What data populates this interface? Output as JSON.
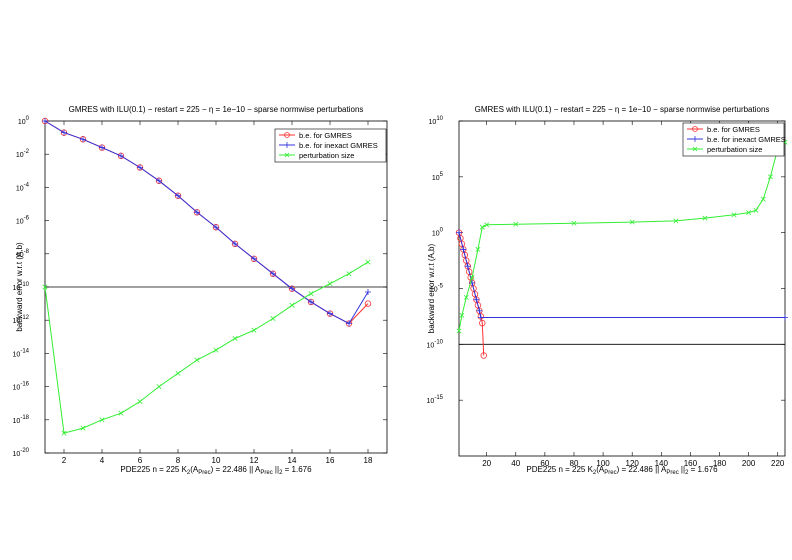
{
  "chart_data": [
    {
      "type": "line",
      "title": "GMRES with ILU(0.1)  − restart = 225 − η = 1e−10 − sparse normwise perturbations",
      "ylabel": "backward error w.r.t (A,b)",
      "xlabel": {
        "problem": "PDE225",
        "size": "n = 225",
        "cond_prefix": "K",
        "cond_sub": "2",
        "cond_mid": "(A",
        "cond_sub2": "Prec",
        "cond_suffix": ") = 22.486",
        "norm_prefix": "|| A",
        "norm_sub": "Prec",
        "norm_suffix": " ||",
        "norm_sub2": "2",
        "norm_value": " = 1.676"
      },
      "xlim": [
        1,
        19
      ],
      "ylim_exp": [
        -20,
        0
      ],
      "xticks": [
        2,
        4,
        6,
        8,
        10,
        12,
        14,
        16,
        18
      ],
      "yticks_exp": [
        0,
        -2,
        -4,
        -6,
        -8,
        -10,
        -12,
        -14,
        -16,
        -18,
        -20
      ],
      "ytick_base": "10",
      "scale": "log",
      "hline_exp": -10,
      "legend": "top-right",
      "series": [
        {
          "name": "b.e. for GMRES",
          "color": "#ff3333",
          "marker": "circle",
          "x": [
            1,
            2,
            3,
            4,
            5,
            6,
            7,
            8,
            9,
            10,
            11,
            12,
            13,
            14,
            15,
            16,
            17,
            18
          ],
          "y_exp": [
            0,
            -0.7,
            -1.1,
            -1.6,
            -2.1,
            -2.8,
            -3.6,
            -4.5,
            -5.5,
            -6.4,
            -7.4,
            -8.3,
            -9.2,
            -10.1,
            -10.9,
            -11.6,
            -12.2,
            -11.0
          ]
        },
        {
          "name": "b.e. for inexact GMRES",
          "color": "#3333dd",
          "marker": "plus",
          "x": [
            1,
            2,
            3,
            4,
            5,
            6,
            7,
            8,
            9,
            10,
            11,
            12,
            13,
            14,
            15,
            16,
            17,
            18
          ],
          "y_exp": [
            0,
            -0.7,
            -1.1,
            -1.6,
            -2.1,
            -2.8,
            -3.6,
            -4.5,
            -5.5,
            -6.4,
            -7.4,
            -8.3,
            -9.2,
            -10.1,
            -10.9,
            -11.6,
            -12.2,
            -10.3
          ]
        },
        {
          "name": "perturbation size",
          "color": "#33ee33",
          "marker": "x",
          "x": [
            1,
            2,
            3,
            4,
            5,
            6,
            7,
            8,
            9,
            10,
            11,
            12,
            13,
            14,
            15,
            16,
            17,
            18
          ],
          "y_exp": [
            -10.0,
            -18.8,
            -18.5,
            -18.0,
            -17.6,
            -16.9,
            -16.0,
            -15.2,
            -14.4,
            -13.8,
            -13.1,
            -12.6,
            -11.9,
            -11.1,
            -10.4,
            -9.8,
            -9.2,
            -8.5
          ]
        }
      ]
    },
    {
      "type": "line",
      "title": "GMRES with ILU(0.1)  − restart = 225 − η = 1e−10 − sparse normwise perturbations",
      "ylabel": "backward error w.r.t (A,b)",
      "xlabel": {
        "problem": "PDE225",
        "size": "n = 225",
        "cond_prefix": "K",
        "cond_sub": "2",
        "cond_mid": "(A",
        "cond_sub2": "Prec",
        "cond_suffix": ") = 22.486",
        "norm_prefix": "|| A",
        "norm_sub": "Prec",
        "norm_suffix": " ||",
        "norm_sub2": "2",
        "norm_value": " = 1.676"
      },
      "xlim": [
        1,
        225
      ],
      "ylim_exp": [
        -20,
        10
      ],
      "xticks": [
        20,
        40,
        60,
        80,
        100,
        120,
        140,
        160,
        180,
        200,
        220
      ],
      "yticks_exp": [
        10,
        5,
        0,
        -5,
        -10,
        -15
      ],
      "ytick_base": "10",
      "scale": "log",
      "hline_exp": -10,
      "legend": "top-left",
      "series": [
        {
          "name": "b.e. for GMRES",
          "color": "#ff3333",
          "marker": "circle",
          "x": [
            1,
            2,
            3,
            4,
            5,
            6,
            7,
            8,
            9,
            10,
            11,
            12,
            13,
            14,
            15,
            16,
            17,
            18
          ],
          "y_exp": [
            0,
            -0.5,
            -1.0,
            -1.5,
            -2.0,
            -2.5,
            -3.0,
            -3.5,
            -4.0,
            -4.5,
            -5.0,
            -5.5,
            -6.0,
            -6.5,
            -7.0,
            -7.5,
            -8.1,
            -11.0
          ]
        },
        {
          "name": "b.e. for inexact GMRES",
          "color": "#3333dd",
          "marker": "plus",
          "x": [
            1,
            4,
            7,
            10,
            13,
            15,
            16,
            225
          ],
          "y_exp": [
            0,
            -1.5,
            -3.0,
            -4.5,
            -6.0,
            -7.0,
            -7.6,
            -7.6
          ]
        },
        {
          "name": "perturbation size",
          "color": "#33ee33",
          "marker": "x",
          "x": [
            1,
            3,
            6,
            10,
            14,
            17,
            20,
            40,
            80,
            120,
            150,
            170,
            190,
            200,
            205,
            210,
            215,
            220,
            225
          ],
          "y_exp": [
            -8.8,
            -7.4,
            -5.8,
            -4.0,
            -1.5,
            0.5,
            0.7,
            0.75,
            0.85,
            0.95,
            1.05,
            1.3,
            1.6,
            1.8,
            2.0,
            3.0,
            5.0,
            7.5,
            8.1
          ]
        }
      ]
    }
  ]
}
